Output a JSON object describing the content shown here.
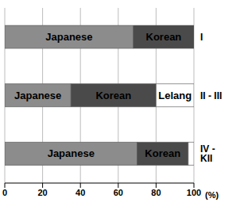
{
  "chart_data": {
    "type": "bar",
    "orientation": "horizontal",
    "stacked": true,
    "grid": true,
    "categories": [
      "I",
      "II - III",
      "IV - KII"
    ],
    "series": [
      {
        "name": "Japanese",
        "color": "#8c8c8c",
        "values": [
          68,
          35,
          70
        ]
      },
      {
        "name": "Korean",
        "color": "#4a4a4a",
        "values": [
          32,
          45,
          27
        ]
      },
      {
        "name": "Lelang",
        "color": "#ffffff",
        "values": [
          0,
          20,
          3
        ]
      }
    ],
    "xlim": [
      0,
      100
    ],
    "xticks": [
      0,
      20,
      40,
      60,
      80,
      100
    ],
    "xlabel": "(%)"
  }
}
